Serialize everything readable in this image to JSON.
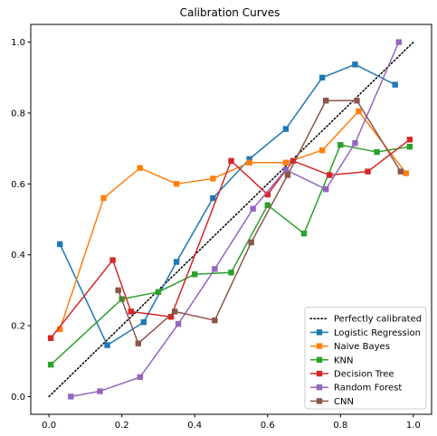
{
  "chart_data": {
    "type": "line",
    "title": "Calibration Curves",
    "xlabel": "",
    "ylabel": "",
    "xlim": [
      -0.05,
      1.05
    ],
    "ylim": [
      -0.05,
      1.05
    ],
    "xticks": [
      "0.0",
      "0.2",
      "0.4",
      "0.6",
      "0.8",
      "1.0"
    ],
    "yticks": [
      "0.0",
      "0.2",
      "0.4",
      "0.6",
      "0.8",
      "1.0"
    ],
    "grid": false,
    "legend_position": "lower-right",
    "reference_line": {
      "name": "Perfectly calibrated",
      "x": [
        0,
        1
      ],
      "y": [
        0,
        1
      ],
      "color": "#000000",
      "style": "dotted"
    },
    "series": [
      {
        "name": "Logistic Regression",
        "color": "#1f77b4",
        "x": [
          0.03,
          0.16,
          0.26,
          0.35,
          0.45,
          0.55,
          0.65,
          0.75,
          0.84,
          0.95
        ],
        "y": [
          0.43,
          0.145,
          0.21,
          0.38,
          0.56,
          0.67,
          0.755,
          0.9,
          0.937,
          0.88
        ]
      },
      {
        "name": "Naive Bayes",
        "color": "#ff7f0e",
        "x": [
          0.03,
          0.15,
          0.25,
          0.35,
          0.45,
          0.55,
          0.65,
          0.75,
          0.85,
          0.98
        ],
        "y": [
          0.19,
          0.56,
          0.645,
          0.6,
          0.615,
          0.66,
          0.66,
          0.695,
          0.805,
          0.63
        ]
      },
      {
        "name": "KNN",
        "color": "#2ca02c",
        "x": [
          0.005,
          0.2,
          0.3,
          0.4,
          0.5,
          0.6,
          0.7,
          0.8,
          0.9,
          0.99
        ],
        "y": [
          0.09,
          0.275,
          0.295,
          0.345,
          0.35,
          0.54,
          0.46,
          0.71,
          0.69,
          0.705
        ]
      },
      {
        "name": "Decision Tree",
        "color": "#d62728",
        "x": [
          0.005,
          0.175,
          0.225,
          0.335,
          0.5,
          0.6,
          0.67,
          0.77,
          0.875,
          0.99
        ],
        "y": [
          0.165,
          0.385,
          0.24,
          0.225,
          0.665,
          0.57,
          0.665,
          0.625,
          0.635,
          0.725
        ]
      },
      {
        "name": "Random Forest",
        "color": "#9467bd",
        "x": [
          0.06,
          0.14,
          0.25,
          0.355,
          0.455,
          0.56,
          0.65,
          0.76,
          0.84,
          0.96
        ],
        "y": [
          0.0,
          0.015,
          0.055,
          0.205,
          0.36,
          0.53,
          0.64,
          0.585,
          0.715,
          1.0
        ]
      },
      {
        "name": "CNN",
        "color": "#8c564b",
        "x": [
          0.19,
          0.245,
          0.345,
          0.455,
          0.555,
          0.655,
          0.76,
          0.845,
          0.965
        ],
        "y": [
          0.3,
          0.15,
          0.24,
          0.215,
          0.435,
          0.625,
          0.835,
          0.835,
          0.635
        ]
      }
    ]
  }
}
